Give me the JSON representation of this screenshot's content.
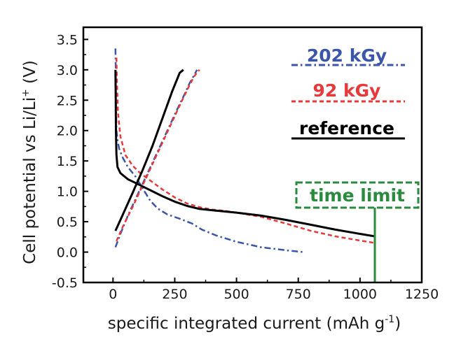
{
  "chart_data": {
    "type": "line",
    "title": "",
    "xlabel": "specific integrated current (mAh g",
    "xlabel_sup": "-1",
    "xlabel_end": ")",
    "ylabel": "Cell potential vs Li/Li",
    "ylabel_sup": "+",
    "ylabel_end": " (V)",
    "xlim": [
      -120,
      1250
    ],
    "ylim": [
      -0.5,
      3.7
    ],
    "xticks": [
      0,
      250,
      500,
      750,
      1000,
      1250
    ],
    "yticks": [
      -0.5,
      0.0,
      0.5,
      1.0,
      1.5,
      2.0,
      2.5,
      3.0,
      3.5
    ],
    "grid": false,
    "legend_position": "top-right",
    "series": [
      {
        "name": "202 kGy",
        "color": "#3b55a8",
        "dash": "dash-dot",
        "segments": [
          {
            "part": "discharge",
            "x": [
              10,
              11,
              12,
              14,
              18,
              25,
              40,
              60,
              90,
              120,
              150,
              180,
              220,
              270,
              320,
              360,
              420,
              500,
              600,
              700,
              770
            ],
            "y": [
              3.35,
              3.0,
              2.5,
              2.0,
              1.85,
              1.7,
              1.55,
              1.4,
              1.25,
              1.05,
              0.85,
              0.72,
              0.62,
              0.55,
              0.47,
              0.37,
              0.27,
              0.17,
              0.08,
              0.03,
              0.0
            ]
          },
          {
            "part": "charge",
            "x": [
              10,
              30,
              60,
              100,
              140,
              180,
              220,
              260,
              290,
              310,
              330,
              340
            ],
            "y": [
              0.08,
              0.3,
              0.6,
              0.95,
              1.3,
              1.65,
              2.0,
              2.35,
              2.6,
              2.78,
              2.92,
              3.0
            ]
          }
        ]
      },
      {
        "name": "92 kGy",
        "color": "#e8393a",
        "dash": "dashed",
        "segments": [
          {
            "part": "discharge",
            "x": [
              14,
              16,
              20,
              30,
              50,
              80,
              110,
              150,
              200,
              250,
              300,
              350,
              400,
              450,
              500,
              600,
              700,
              800,
              900,
              1000,
              1060
            ],
            "y": [
              3.2,
              2.8,
              2.3,
              1.9,
              1.6,
              1.42,
              1.3,
              1.18,
              1.03,
              0.9,
              0.8,
              0.74,
              0.7,
              0.68,
              0.65,
              0.58,
              0.47,
              0.35,
              0.26,
              0.19,
              0.15
            ]
          },
          {
            "part": "charge",
            "x": [
              14,
              40,
              80,
              120,
              160,
              200,
              240,
              280,
              310,
              330,
              350
            ],
            "y": [
              0.18,
              0.42,
              0.75,
              1.1,
              1.45,
              1.8,
              2.15,
              2.5,
              2.75,
              2.9,
              3.0
            ]
          }
        ]
      },
      {
        "name": "reference",
        "color": "#000000",
        "dash": "solid",
        "segments": [
          {
            "part": "discharge",
            "x": [
              10,
              11,
              12,
              14,
              18,
              30,
              60,
              100,
              150,
              200,
              250,
              300,
              350,
              400,
              500,
              600,
              700,
              800,
              900,
              1000,
              1060
            ],
            "y": [
              3.0,
              2.5,
              2.0,
              1.6,
              1.4,
              1.3,
              1.2,
              1.12,
              1.02,
              0.92,
              0.83,
              0.76,
              0.71,
              0.69,
              0.65,
              0.6,
              0.53,
              0.45,
              0.37,
              0.3,
              0.26
            ]
          },
          {
            "part": "charge",
            "x": [
              10,
              40,
              80,
              120,
              160,
              200,
              240,
              270,
              285
            ],
            "y": [
              0.35,
              0.62,
              0.98,
              1.35,
              1.75,
              2.2,
              2.65,
              2.95,
              3.0
            ]
          }
        ]
      }
    ],
    "annotation": {
      "text": "time limit",
      "color": "#2a8a3e",
      "x": 1060
    }
  }
}
